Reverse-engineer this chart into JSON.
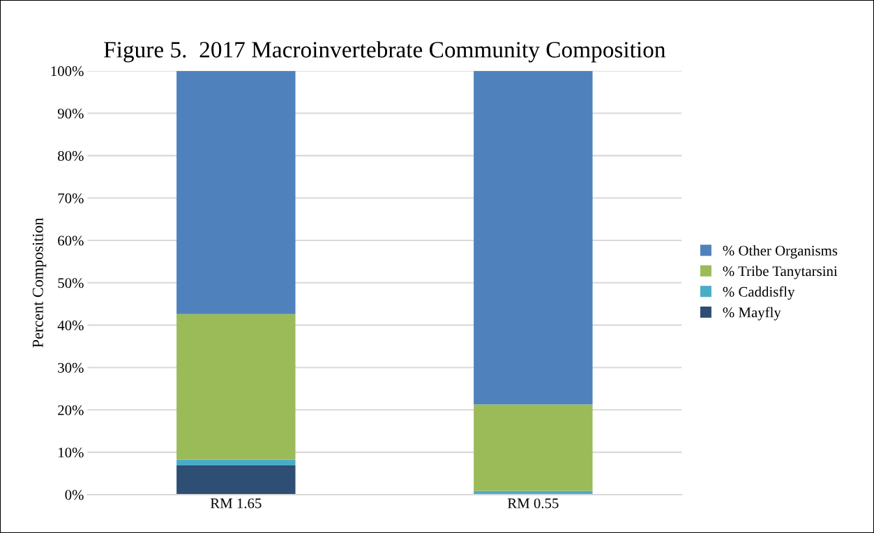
{
  "chart_data": {
    "type": "bar",
    "title": "Figure 5.  2017 Macroinvertebrate Community Composition",
    "ylabel": "Percent Composition",
    "categories": [
      "RM 1.65",
      "RM 0.55"
    ],
    "stacked": true,
    "series": [
      {
        "name": "% Mayfly",
        "color": "#2e4e74",
        "values": [
          6.9,
          0
        ]
      },
      {
        "name": "% Caddisfly",
        "color": "#4bacc6",
        "values": [
          1.4,
          0.9
        ]
      },
      {
        "name": "% Tribe Tanytarsini",
        "color": "#9bbb59",
        "values": [
          34.3,
          20.4
        ]
      },
      {
        "name": "% Other Organisms",
        "color": "#4f81bd",
        "values": [
          57.4,
          78.7
        ]
      }
    ],
    "ylim": [
      0,
      100
    ],
    "yticks": [
      {
        "value": 0,
        "label": "0%"
      },
      {
        "value": 10,
        "label": "10%"
      },
      {
        "value": 20,
        "label": "20%"
      },
      {
        "value": 30,
        "label": "30%"
      },
      {
        "value": 40,
        "label": "40%"
      },
      {
        "value": 50,
        "label": "50%"
      },
      {
        "value": 60,
        "label": "60%"
      },
      {
        "value": 70,
        "label": "70%"
      },
      {
        "value": 80,
        "label": "80%"
      },
      {
        "value": 90,
        "label": "90%"
      },
      {
        "value": 100,
        "label": "100%"
      }
    ],
    "grid": "y",
    "legend": "right"
  }
}
